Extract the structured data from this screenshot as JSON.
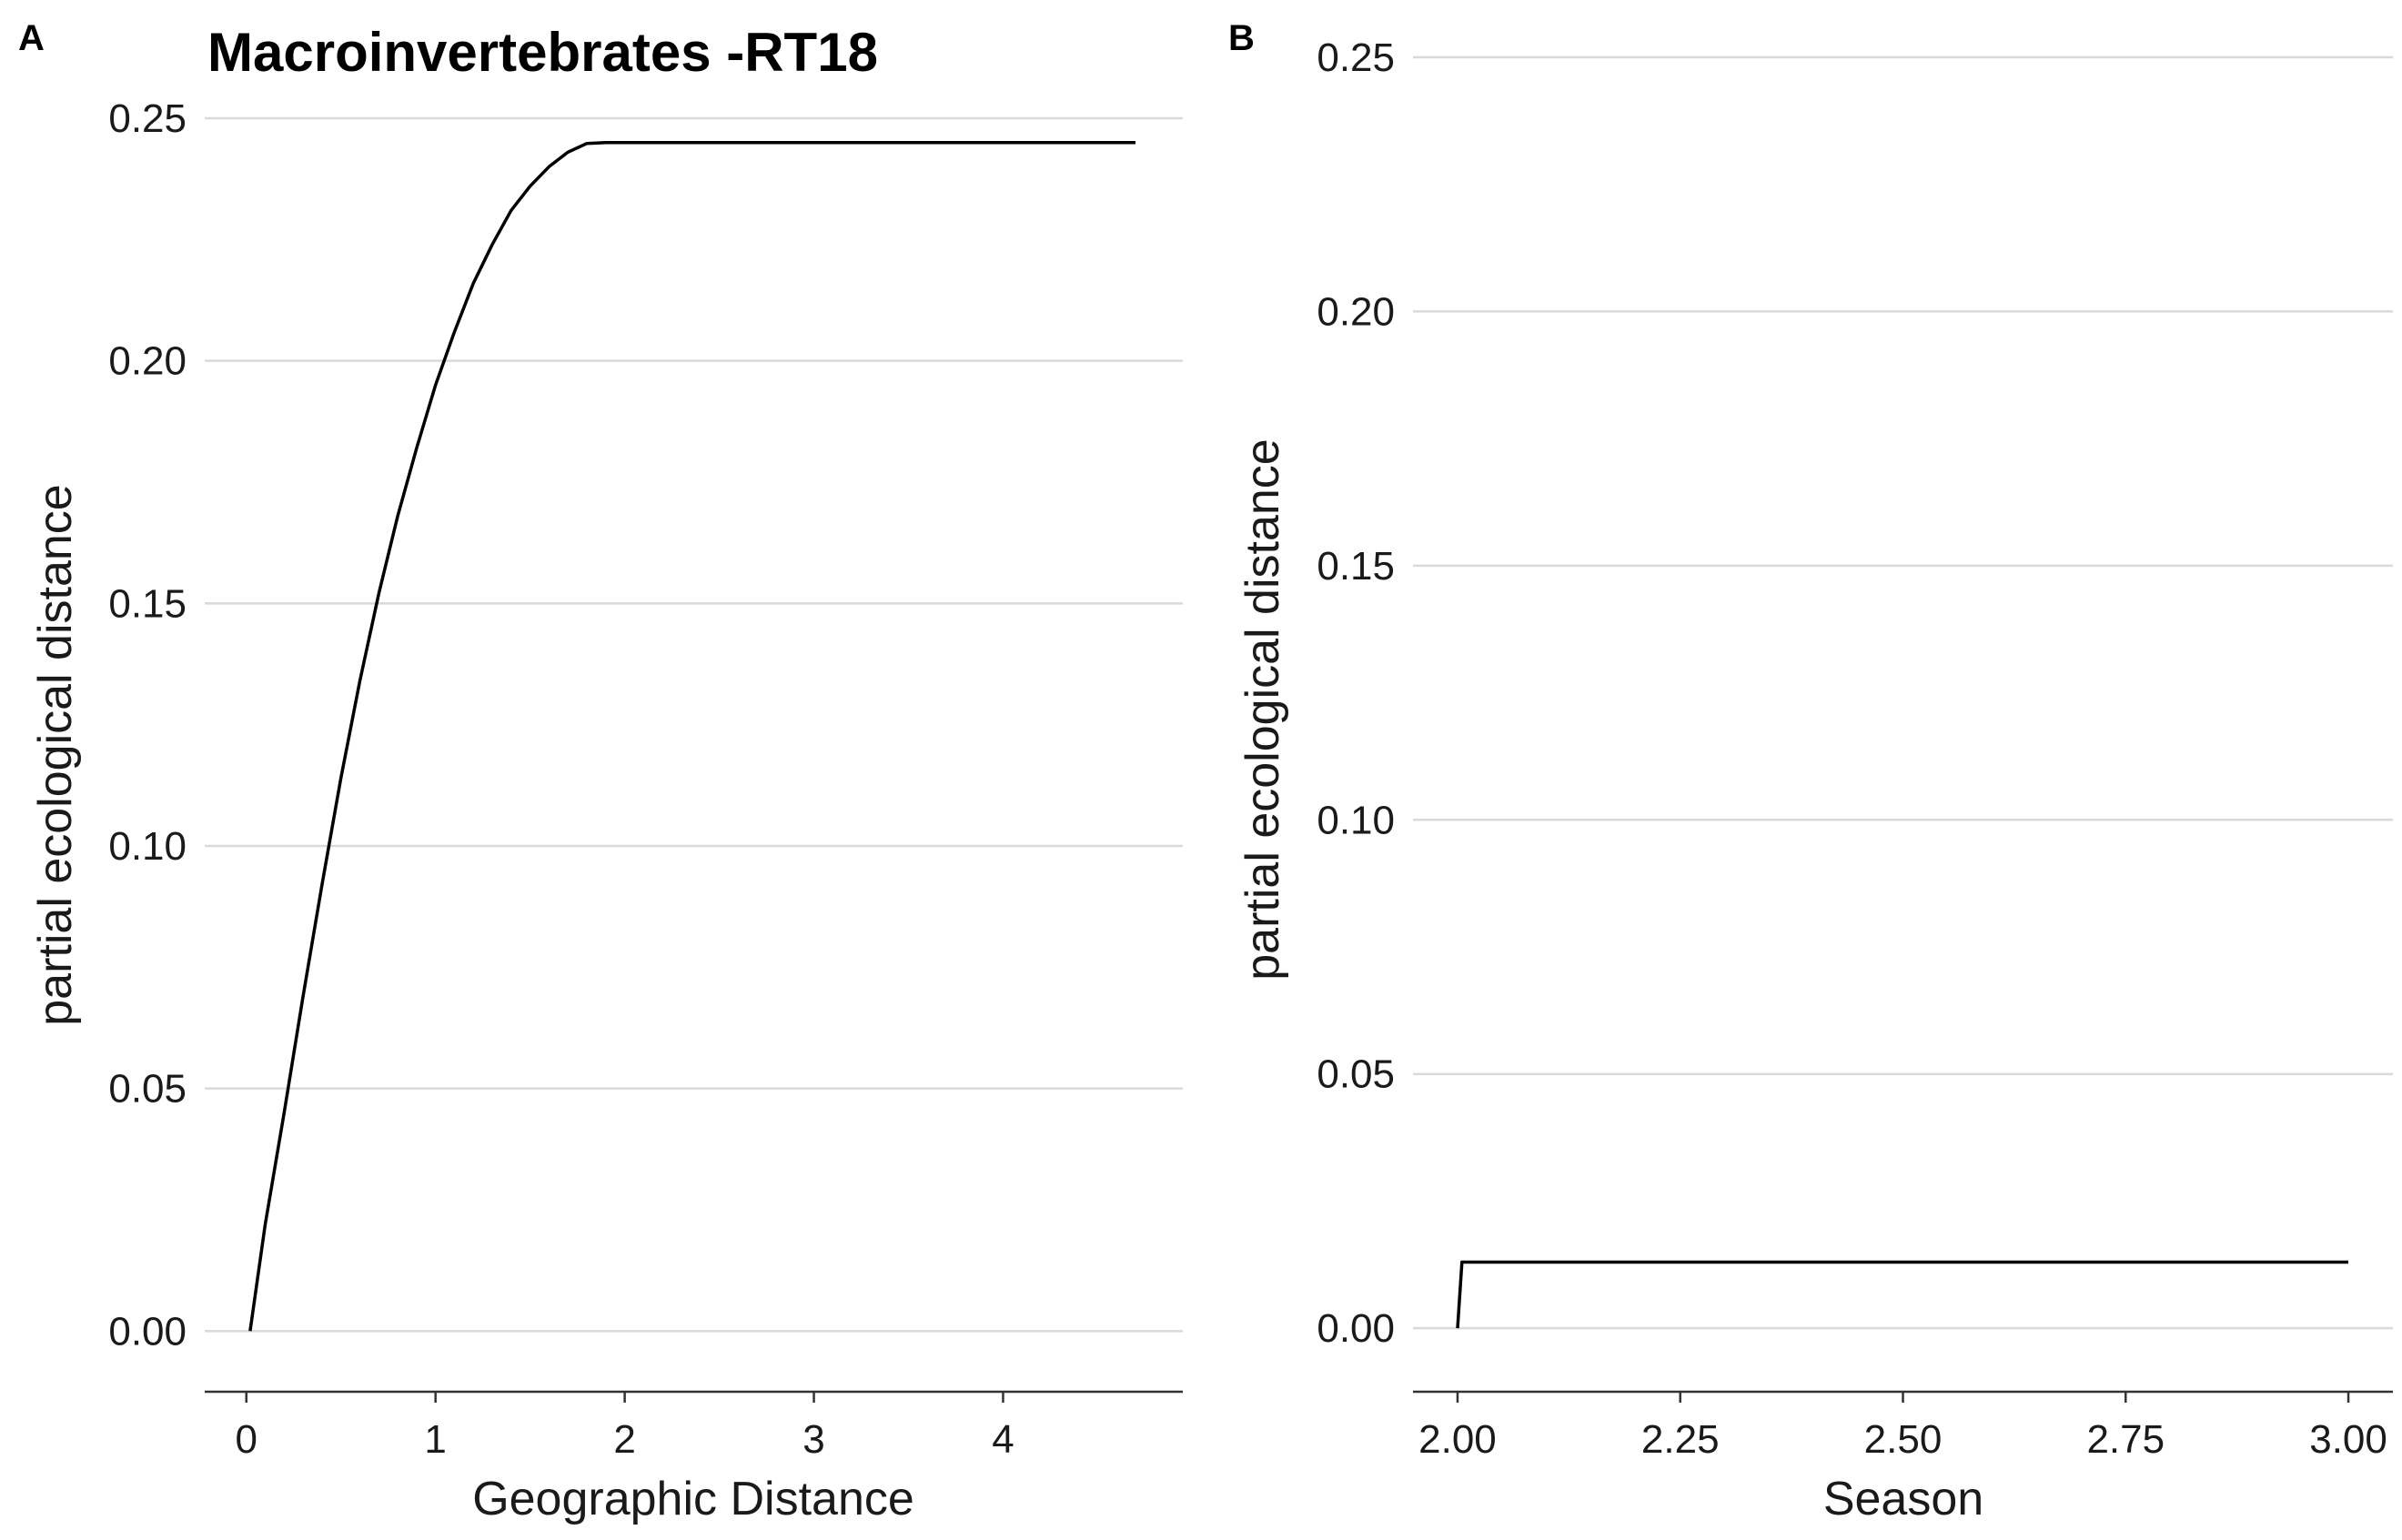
{
  "chart_data": [
    {
      "panel_label": "A",
      "type": "line",
      "title": "Macroinvertebrates -RT18",
      "xlabel": "Geographic Distance",
      "ylabel": "partial ecological distance",
      "xlim": [
        -0.22,
        4.95
      ],
      "ylim": [
        -0.0125,
        0.25
      ],
      "xticks": [
        "0",
        "1",
        "2",
        "3",
        "4"
      ],
      "xtick_values": [
        0,
        1,
        2,
        3,
        4
      ],
      "yticks": [
        "0.00",
        "0.05",
        "0.10",
        "0.15",
        "0.20",
        "0.25"
      ],
      "ytick_values": [
        0,
        0.05,
        0.1,
        0.15,
        0.2,
        0.25
      ],
      "grid": "horizontal major",
      "series": [
        {
          "x": [
            0.02,
            0.1,
            0.2,
            0.3,
            0.4,
            0.5,
            0.6,
            0.7,
            0.8,
            0.9,
            1.0,
            1.1,
            1.2,
            1.3,
            1.4,
            1.5,
            1.6,
            1.7,
            1.8,
            1.9,
            2.0,
            4.7
          ],
          "y": [
            0.0,
            0.022,
            0.045,
            0.069,
            0.092,
            0.114,
            0.134,
            0.152,
            0.168,
            0.182,
            0.195,
            0.206,
            0.216,
            0.224,
            0.231,
            0.236,
            0.24,
            0.243,
            0.2448,
            0.245,
            0.245,
            0.245
          ]
        }
      ]
    },
    {
      "panel_label": "B",
      "type": "line",
      "title": "",
      "xlabel": "Season",
      "ylabel": "partial ecological distance",
      "xlim": [
        1.95,
        3.05
      ],
      "ylim": [
        -0.0125,
        0.255
      ],
      "xticks": [
        "2.00",
        "2.25",
        "2.50",
        "2.75",
        "3.00"
      ],
      "xtick_values": [
        2.0,
        2.25,
        2.5,
        2.75,
        3.0
      ],
      "yticks": [
        "0.00",
        "0.05",
        "0.10",
        "0.15",
        "0.20",
        "0.25"
      ],
      "ytick_values": [
        0,
        0.05,
        0.1,
        0.15,
        0.2,
        0.25
      ],
      "grid": "horizontal major",
      "series": [
        {
          "x": [
            2.0,
            2.005,
            3.0
          ],
          "y": [
            0.0,
            0.013,
            0.013
          ]
        }
      ]
    }
  ]
}
